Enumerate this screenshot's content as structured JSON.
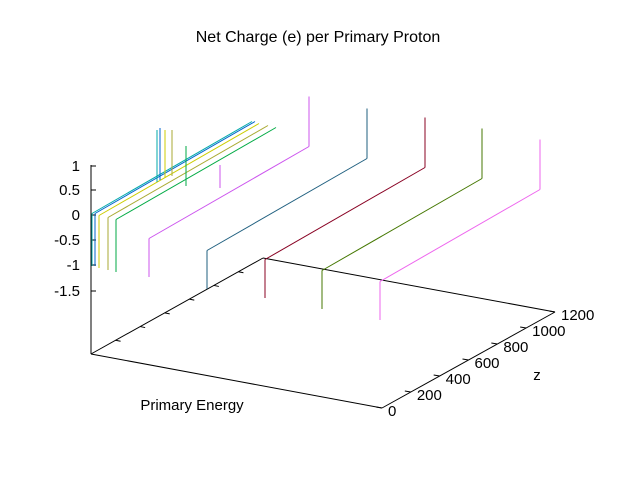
{
  "chart_data": {
    "type": "line",
    "title": "Net Charge (e) per Primary Proton",
    "xlabel": "Primary Energy",
    "ylabel": "z",
    "zlabel": "",
    "z_ticks": [
      "1",
      "0.5",
      "0",
      "-0.5",
      "-1",
      "-1.5"
    ],
    "y_ticks": [
      "0",
      "200",
      "400",
      "600",
      "800",
      "1000",
      "1200"
    ],
    "ylim": [
      0,
      1200
    ],
    "grid": false,
    "series": [
      {
        "color": "#00aaaa",
        "z_values": [
          -1,
          0,
          1
        ]
      },
      {
        "color": "#0066cc",
        "z_values": [
          -1,
          0,
          1
        ]
      },
      {
        "color": "#cccc00",
        "z_values": [
          -1,
          0,
          1
        ]
      },
      {
        "color": "#aaaa33",
        "z_values": [
          -1,
          0,
          1
        ]
      },
      {
        "color": "#00aa44",
        "z_values": [
          -1,
          0,
          1
        ]
      },
      {
        "color": "#cc55ee",
        "z_values": [
          -1,
          0,
          1
        ]
      },
      {
        "color": "#1f5f7f",
        "z_values": [
          -1,
          0,
          1
        ]
      },
      {
        "color": "#880022",
        "z_values": [
          -1,
          0,
          1
        ]
      },
      {
        "color": "#447700",
        "z_values": [
          -1,
          0,
          1
        ]
      },
      {
        "color": "#ee66ee",
        "z_values": [
          -1,
          0,
          1
        ]
      }
    ]
  }
}
